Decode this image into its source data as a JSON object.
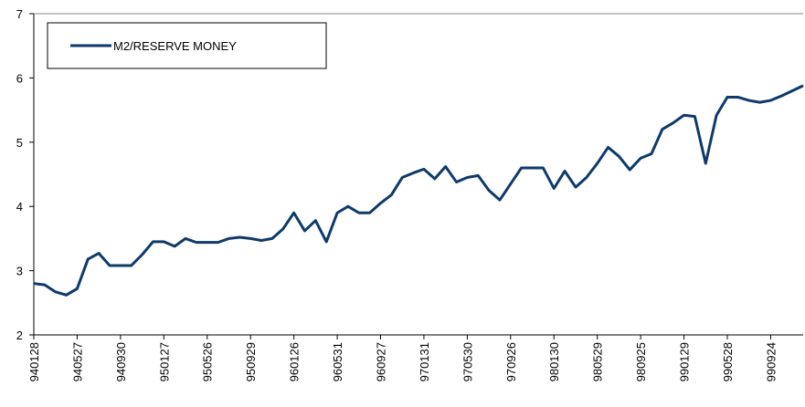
{
  "chart_data": {
    "type": "line",
    "categories": [
      "940128",
      null,
      null,
      null,
      "940527",
      null,
      null,
      null,
      "940930",
      null,
      null,
      null,
      "950127",
      null,
      null,
      null,
      "950526",
      null,
      null,
      null,
      "950929",
      null,
      null,
      null,
      "960126",
      null,
      null,
      null,
      "960531",
      null,
      null,
      null,
      "960927",
      null,
      null,
      null,
      "970131",
      null,
      null,
      null,
      "970530",
      null,
      null,
      null,
      "970926",
      null,
      null,
      null,
      "980130",
      null,
      null,
      null,
      "980529",
      null,
      null,
      null,
      "980925",
      null,
      null,
      null,
      "990129",
      null,
      null,
      null,
      "990528",
      null,
      null,
      null,
      "990924",
      null,
      null,
      null
    ],
    "series": [
      {
        "name": "M2/RESERVE MONEY",
        "color": "#0e3a6b",
        "values": [
          2.8,
          2.78,
          2.67,
          2.62,
          2.72,
          3.18,
          3.27,
          3.08,
          3.08,
          3.08,
          3.25,
          3.45,
          3.45,
          3.38,
          3.5,
          3.44,
          3.44,
          3.44,
          3.5,
          3.52,
          3.5,
          3.47,
          3.5,
          3.65,
          3.9,
          3.62,
          3.78,
          3.45,
          3.9,
          4.0,
          3.9,
          3.9,
          4.05,
          4.18,
          4.45,
          4.52,
          4.58,
          4.43,
          4.62,
          4.38,
          4.45,
          4.48,
          4.25,
          4.1,
          4.35,
          4.6,
          4.6,
          4.6,
          4.28,
          4.55,
          4.3,
          4.45,
          4.67,
          4.92,
          4.78,
          4.57,
          4.75,
          4.82,
          5.2,
          5.3,
          5.42,
          5.4,
          4.67,
          5.42,
          5.7,
          5.7,
          5.65,
          5.62,
          5.65,
          5.72,
          5.8,
          5.88
        ]
      }
    ],
    "ylim": [
      2,
      7
    ],
    "yticks": [
      2,
      3,
      4,
      5,
      6,
      7
    ],
    "legend": "upper left"
  }
}
